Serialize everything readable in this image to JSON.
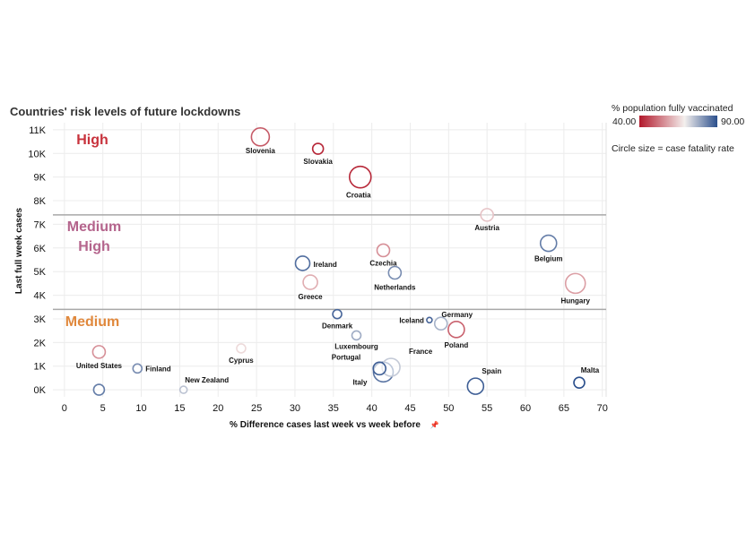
{
  "chart_data": {
    "type": "scatter",
    "title": "Countries' risk levels of future lockdowns",
    "xlabel": "% Difference cases last week vs week before",
    "ylabel": "Last full week cases",
    "xlim": [
      -1.5,
      70.5
    ],
    "ylim": [
      -300,
      11300
    ],
    "x_ticks": [
      0,
      5,
      10,
      15,
      20,
      25,
      30,
      35,
      40,
      45,
      50,
      55,
      60,
      65,
      70
    ],
    "y_ticks": [
      {
        "value": 0,
        "label": "0K"
      },
      {
        "value": 1000,
        "label": "1K"
      },
      {
        "value": 2000,
        "label": "2K"
      },
      {
        "value": 3000,
        "label": "3K"
      },
      {
        "value": 4000,
        "label": "4K"
      },
      {
        "value": 5000,
        "label": "5K"
      },
      {
        "value": 6000,
        "label": "6K"
      },
      {
        "value": 7000,
        "label": "7K"
      },
      {
        "value": 8000,
        "label": "8K"
      },
      {
        "value": 9000,
        "label": "9K"
      },
      {
        "value": 10000,
        "label": "10K"
      },
      {
        "value": 11000,
        "label": "11K"
      }
    ],
    "grid": true,
    "zones": [
      {
        "name": "High",
        "color": "#c8323c"
      },
      {
        "name": "Medium\nHigh",
        "color": "#b4648c"
      },
      {
        "name": "Medium",
        "color": "#e0883c"
      }
    ],
    "zone_boundaries": [
      7400,
      3400
    ],
    "color_legend": {
      "title": "% population fully vaccinated",
      "min": "40.00",
      "max": "90.00",
      "min_color": "#b2182b",
      "mid_color": "#f4f0ee",
      "max_color": "#2b4f8c"
    },
    "size_legend": "Circle size = case fatality rate",
    "points": [
      {
        "label": "Slovenia",
        "x": 25.5,
        "y": 10700,
        "vacc": 49,
        "size": 10
      },
      {
        "label": "Slovakia",
        "x": 33.0,
        "y": 10200,
        "vacc": 42,
        "size": 6
      },
      {
        "label": "Croatia",
        "x": 38.5,
        "y": 9000,
        "vacc": 42,
        "size": 12
      },
      {
        "label": "Austria",
        "x": 55.0,
        "y": 7400,
        "vacc": 63,
        "size": 7
      },
      {
        "label": "Belgium",
        "x": 63.0,
        "y": 6200,
        "vacc": 84,
        "size": 9
      },
      {
        "label": "Czechia",
        "x": 41.5,
        "y": 5900,
        "vacc": 56,
        "size": 7
      },
      {
        "label": "Ireland",
        "x": 31.0,
        "y": 5350,
        "vacc": 86,
        "size": 8
      },
      {
        "label": "Netherlands",
        "x": 43.0,
        "y": 4950,
        "vacc": 82,
        "size": 7
      },
      {
        "label": "Greece",
        "x": 32.0,
        "y": 4550,
        "vacc": 60,
        "size": 8
      },
      {
        "label": "Hungary",
        "x": 66.5,
        "y": 4500,
        "vacc": 58,
        "size": 11
      },
      {
        "label": "Denmark",
        "x": 35.5,
        "y": 3200,
        "vacc": 87,
        "size": 5
      },
      {
        "label": "Iceland",
        "x": 47.5,
        "y": 2950,
        "vacc": 87,
        "size": 3
      },
      {
        "label": "Germany",
        "x": 49.0,
        "y": 2800,
        "vacc": 77,
        "size": 7
      },
      {
        "label": "Poland",
        "x": 51.0,
        "y": 2550,
        "vacc": 50,
        "size": 9
      },
      {
        "label": "Luxembourg",
        "x": 38.0,
        "y": 2300,
        "vacc": 78,
        "size": 5
      },
      {
        "label": "United States",
        "x": 4.5,
        "y": 1600,
        "vacc": 56,
        "size": 7
      },
      {
        "label": "Cyprus",
        "x": 23.0,
        "y": 1750,
        "vacc": 66,
        "size": 5
      },
      {
        "label": "Finland",
        "x": 9.5,
        "y": 900,
        "vacc": 82,
        "size": 5
      },
      {
        "label": "New Zealand",
        "x": 15.5,
        "y": 0,
        "vacc": 75,
        "size": 4
      },
      {
        "label": "Portugal",
        "x": 41.0,
        "y": 900,
        "vacc": 88,
        "size": 7
      },
      {
        "label": "France",
        "x": 42.5,
        "y": 950,
        "vacc": 74,
        "size": 10
      },
      {
        "label": "Italy",
        "x": 41.5,
        "y": 750,
        "vacc": 85,
        "size": 11
      },
      {
        "label": "Spain",
        "x": 53.5,
        "y": 150,
        "vacc": 88,
        "size": 9
      },
      {
        "label": "Malta",
        "x": 67.0,
        "y": 300,
        "vacc": 90,
        "size": 6
      },
      {
        "label": "",
        "x": 4.5,
        "y": 0,
        "vacc": 84,
        "size": 6
      }
    ]
  }
}
